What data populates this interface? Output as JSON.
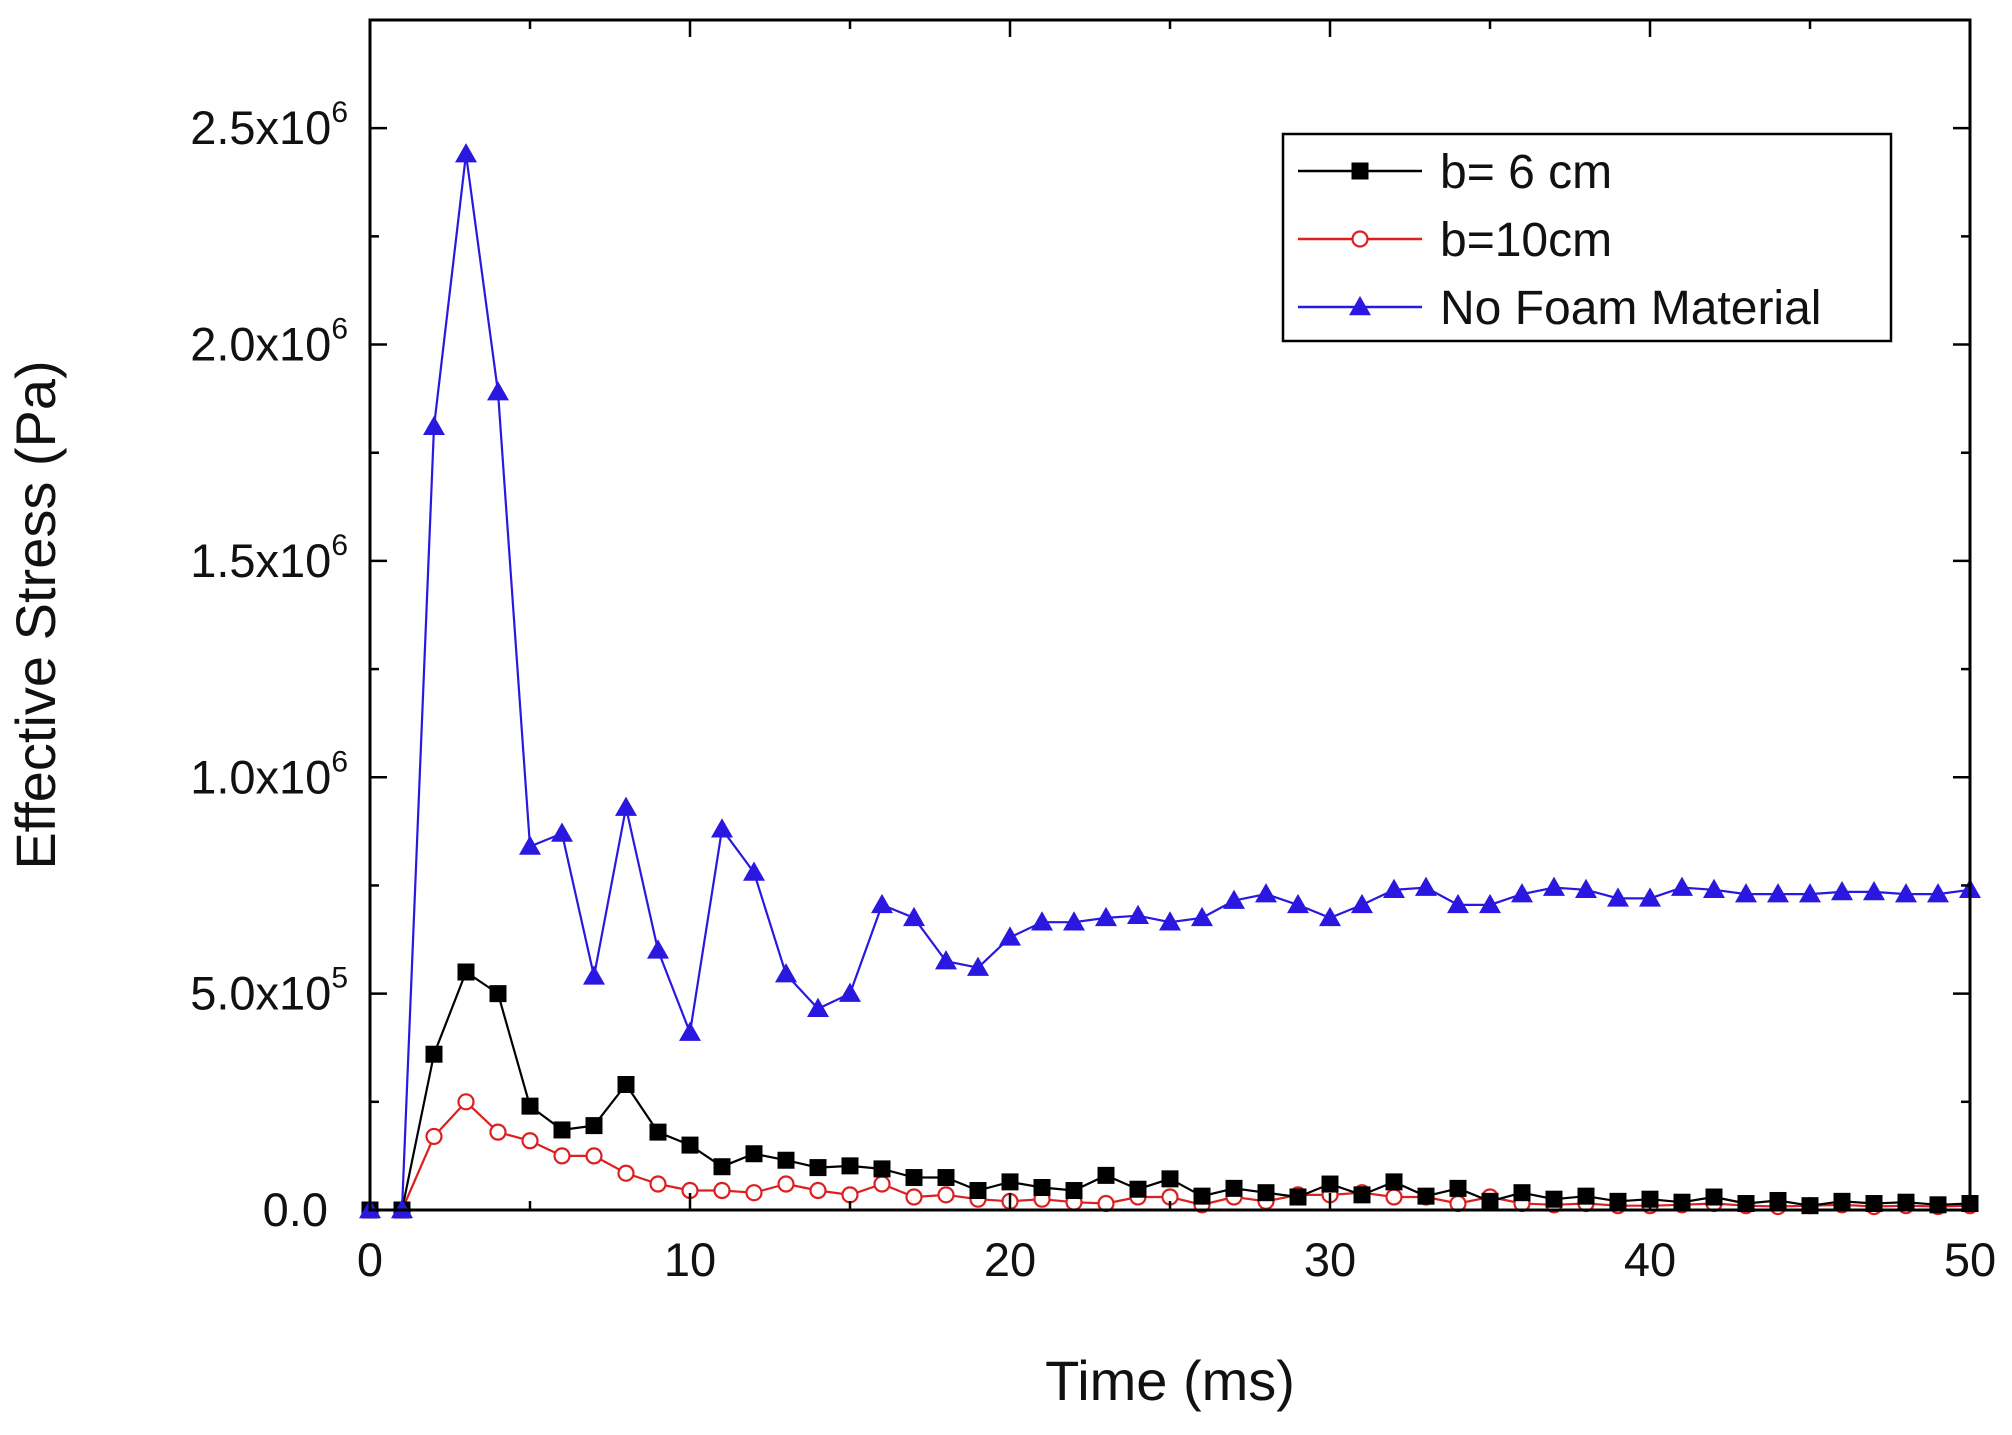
{
  "chart_data": {
    "type": "line",
    "title": "",
    "xlabel": "Time (ms)",
    "ylabel": "Effective Stress (Pa)",
    "xlim": [
      0,
      50
    ],
    "ylim": [
      0,
      2750000
    ],
    "x_ticks": [
      0,
      10,
      20,
      30,
      40,
      50
    ],
    "x_tick_labels": [
      "0",
      "10",
      "20",
      "30",
      "40",
      "50"
    ],
    "y_ticks": [
      {
        "value": 0,
        "mantissa": "0.0",
        "exponent": ""
      },
      {
        "value": 500000,
        "mantissa": "5.0x10",
        "exponent": "5"
      },
      {
        "value": 1000000,
        "mantissa": "1.0x10",
        "exponent": "6"
      },
      {
        "value": 1500000,
        "mantissa": "1.5x10",
        "exponent": "6"
      },
      {
        "value": 2000000,
        "mantissa": "2.0x10",
        "exponent": "6"
      },
      {
        "value": 2500000,
        "mantissa": "2.5x10",
        "exponent": "6"
      }
    ],
    "grid": false,
    "legend_position": "top-right",
    "x": [
      0,
      1,
      2,
      3,
      4,
      5,
      6,
      7,
      8,
      9,
      10,
      11,
      12,
      13,
      14,
      15,
      16,
      17,
      18,
      19,
      20,
      21,
      22,
      23,
      24,
      25,
      26,
      27,
      28,
      29,
      30,
      31,
      32,
      33,
      34,
      35,
      36,
      37,
      38,
      39,
      40,
      41,
      42,
      43,
      44,
      45,
      46,
      47,
      48,
      49,
      50
    ],
    "series": [
      {
        "name": "b= 6 cm",
        "color": "#000000",
        "marker": "filled-square",
        "values": [
          0,
          0,
          360000,
          550000,
          500000,
          240000,
          185000,
          195000,
          290000,
          180000,
          150000,
          100000,
          130000,
          115000,
          98000,
          102000,
          95000,
          75000,
          75000,
          45000,
          65000,
          52000,
          45000,
          80000,
          48000,
          72000,
          32000,
          50000,
          40000,
          30000,
          60000,
          35000,
          65000,
          32000,
          50000,
          20000,
          40000,
          25000,
          32000,
          20000,
          25000,
          18000,
          30000,
          15000,
          22000,
          10000,
          20000,
          15000,
          18000,
          12000,
          15000
        ]
      },
      {
        "name": "b=10cm",
        "color": "#dd1f1f",
        "marker": "open-circle",
        "values": [
          0,
          0,
          170000,
          250000,
          180000,
          160000,
          125000,
          125000,
          85000,
          60000,
          45000,
          45000,
          40000,
          60000,
          45000,
          35000,
          60000,
          30000,
          35000,
          25000,
          20000,
          25000,
          18000,
          15000,
          30000,
          30000,
          12000,
          30000,
          20000,
          35000,
          35000,
          40000,
          30000,
          30000,
          15000,
          30000,
          15000,
          12000,
          15000,
          10000,
          10000,
          12000,
          15000,
          10000,
          8000,
          10000,
          12000,
          8000,
          10000,
          8000,
          10000
        ]
      },
      {
        "name": "No Foam Material",
        "color": "#2a18e0",
        "marker": "filled-triangle",
        "values": [
          0,
          0,
          1810000,
          2440000,
          1890000,
          840000,
          870000,
          540000,
          930000,
          600000,
          410000,
          880000,
          780000,
          545000,
          465000,
          500000,
          705000,
          675000,
          575000,
          560000,
          630000,
          665000,
          665000,
          675000,
          680000,
          665000,
          675000,
          715000,
          730000,
          705000,
          675000,
          705000,
          740000,
          745000,
          705000,
          705000,
          730000,
          745000,
          740000,
          720000,
          720000,
          745000,
          740000,
          730000,
          730000,
          730000,
          735000,
          735000,
          730000,
          730000,
          740000
        ]
      }
    ]
  }
}
